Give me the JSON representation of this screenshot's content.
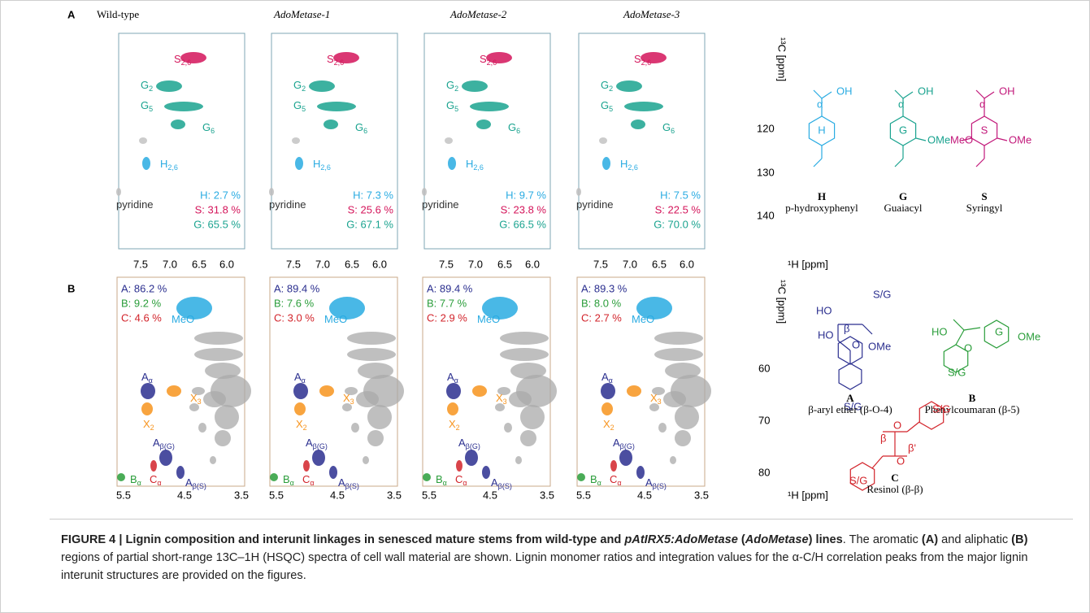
{
  "panel_a": {
    "letter": "A",
    "x_axis_label": "¹H [ppm]",
    "y_axis_label": "¹³C [ppm]",
    "x_ticks": [
      "7.5",
      "7.0",
      "6.5",
      "6.0"
    ],
    "y_ticks": [
      "120",
      "130",
      "140"
    ],
    "ratio_colors": [
      "#29abe2",
      "#d4145a",
      "#1aa38f"
    ],
    "spectra": [
      {
        "title": "Wild-type",
        "italic": false,
        "ratios": [
          "H: 2.7 %",
          "S: 31.8 %",
          "G: 65.5 %"
        ]
      },
      {
        "title": "AdoMetase-1",
        "italic": true,
        "ratios": [
          "H: 7.3 %",
          "S: 25.6 %",
          "G: 67.1 %"
        ]
      },
      {
        "title": "AdoMetase-2",
        "italic": true,
        "ratios": [
          "H: 9.7 %",
          "S: 23.8 %",
          "G: 66.5 %"
        ]
      },
      {
        "title": "AdoMetase-3",
        "italic": true,
        "ratios": [
          "H: 7.5 %",
          "S: 22.5 %",
          "G: 70.0 %"
        ]
      }
    ],
    "peaks": [
      {
        "text": "S",
        "sub": "2,6"
      },
      {
        "text": "G",
        "sub": "2"
      },
      {
        "text": "G",
        "sub": "5"
      },
      {
        "text": "G",
        "sub": "6"
      },
      {
        "text": "H",
        "sub": "2,6"
      },
      {
        "text": "pyridine"
      }
    ],
    "structures": [
      {
        "letter": "H",
        "name": "p-hydroxyphenyl",
        "color": "#29abe2",
        "atoms": [
          "OH",
          "α",
          "H"
        ]
      },
      {
        "letter": "G",
        "name": "Guaiacyl",
        "color": "#1aa38f",
        "atoms": [
          "OH",
          "α",
          "G",
          "OMe"
        ]
      },
      {
        "letter": "S",
        "name": "Syringyl",
        "color": "#c2187a",
        "atoms": [
          "OH",
          "α",
          "S",
          "MeO",
          "OMe"
        ]
      }
    ]
  },
  "panel_b": {
    "letter": "B",
    "x_axis_label": "¹H [ppm]",
    "y_axis_label": "¹³C [ppm]",
    "x_ticks": [
      "5.5",
      "4.5",
      "3.5"
    ],
    "y_ticks": [
      "60",
      "70",
      "80"
    ],
    "ratio_colors": [
      "#2b2f8f",
      "#2a9d3a",
      "#d2232a"
    ],
    "spectra": [
      {
        "ratios": [
          "A: 86.2 %",
          "B: 9.2 %",
          "C: 4.6 %"
        ]
      },
      {
        "ratios": [
          "A: 89.4 %",
          "B: 7.6 %",
          "C: 3.0 %"
        ]
      },
      {
        "ratios": [
          "A: 89.4 %",
          "B: 7.7 %",
          "C: 2.9 %"
        ]
      },
      {
        "ratios": [
          "A: 89.3 %",
          "B: 8.0 %",
          "C: 2.7 %"
        ]
      }
    ],
    "peaks": [
      {
        "text": "MeO"
      },
      {
        "text": "A",
        "sub": "α"
      },
      {
        "text": "X",
        "sub": "3"
      },
      {
        "text": "X",
        "sub": "2"
      },
      {
        "text": "A",
        "sub": "β(G)"
      },
      {
        "text": "C",
        "sub": "α"
      },
      {
        "text": "A",
        "sub": "β(S)"
      },
      {
        "text": "B",
        "sub": "α"
      }
    ],
    "structures": [
      {
        "letter": "A",
        "name": "β-aryl ether (β-O-4)",
        "color": "#2b2f8f",
        "atoms": [
          "HO",
          "HO",
          "β",
          "O",
          "S/G",
          "S/G",
          "OMe"
        ]
      },
      {
        "letter": "B",
        "name": "Phenylcoumaran (β-5)",
        "color": "#2a9d3a",
        "atoms": [
          "HO",
          "O",
          "S/G",
          "G",
          "OMe"
        ]
      },
      {
        "letter": "C",
        "name": "Resinol (β-β)",
        "color": "#d2232a",
        "atoms": [
          "O",
          "O",
          "S/G",
          "S/G",
          "β",
          "β'"
        ]
      }
    ]
  },
  "caption": [
    {
      "text": "FIGURE 4 | ",
      "style": "bold"
    },
    {
      "text": "Lignin composition and interunit linkages in senesced mature stems from wild-type and ",
      "style": "bold"
    },
    {
      "text": "pAtIRX5:AdoMetase",
      "style": "bold-italic"
    },
    {
      "text": " (",
      "style": "bold"
    },
    {
      "text": "AdoMetase",
      "style": "bold-italic"
    },
    {
      "text": ") lines",
      "style": "bold"
    },
    {
      "text": ". The aromatic ",
      "style": "normal"
    },
    {
      "text": "(A)",
      "style": "bold"
    },
    {
      "text": " and aliphatic ",
      "style": "normal"
    },
    {
      "text": "(B)",
      "style": "bold"
    },
    {
      "text": " regions of partial short-range 13C–1H (HSQC) spectra of cell wall material are shown. Lignin monomer ratios and integration values for the α-C/H correlation peaks from the major lignin interunit structures are provided on the figures.",
      "style": "normal"
    }
  ]
}
